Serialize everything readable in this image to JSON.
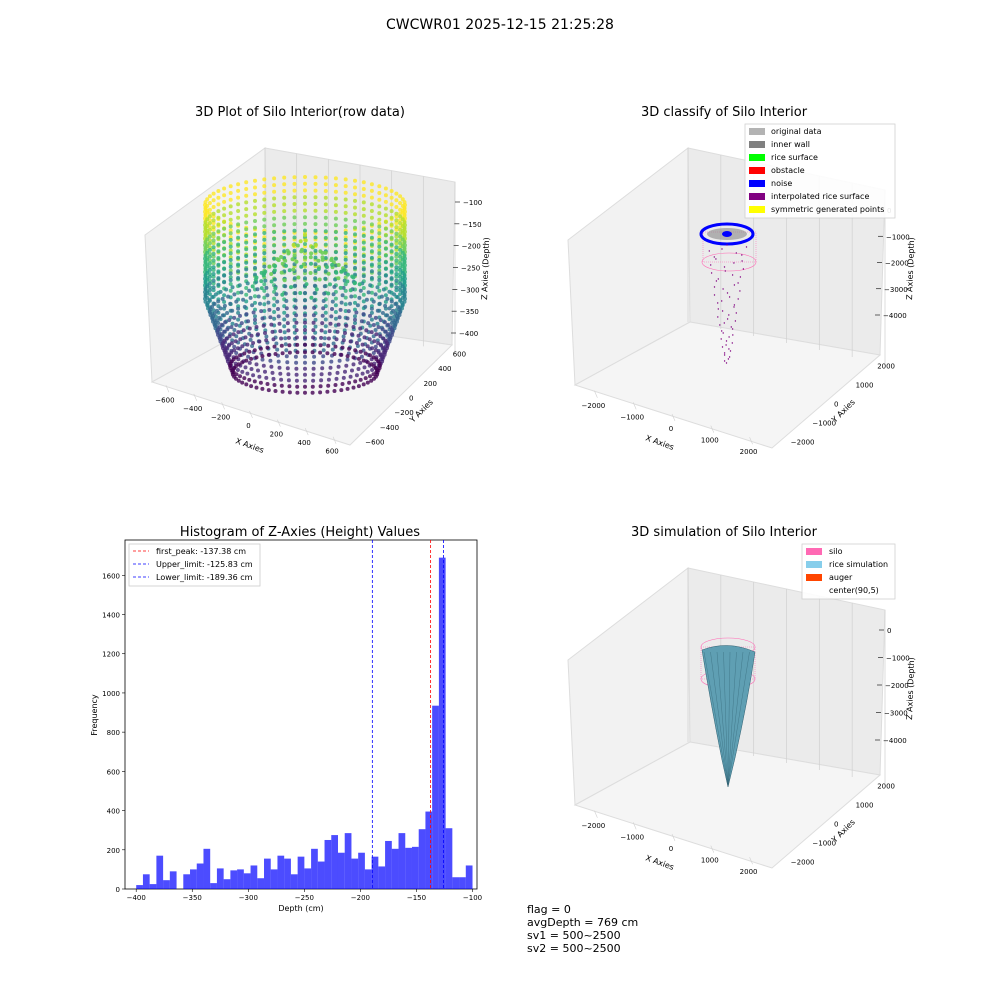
{
  "figure": {
    "suptitle": "CWCWR01 2025-12-15 21:25:28",
    "footer": {
      "flag": "flag = 0",
      "avg_depth": "avgDepth = 769 cm",
      "sv1": "sv1 = 500~2500",
      "sv2": "sv2 = 500~2500"
    }
  },
  "chart_data": [
    {
      "type": "scatter",
      "title": "3D Plot of Silo Interior(row data)",
      "xlabel": "X Axies",
      "ylabel": "Y Axies",
      "zlabel": "Z Axies (Depth)",
      "x_ticks": [
        -600,
        -400,
        -200,
        0,
        200,
        400,
        600
      ],
      "y_ticks": [
        -600,
        -400,
        -200,
        0,
        200,
        400,
        600
      ],
      "z_ticks": [
        -100,
        -150,
        -200,
        -250,
        -300,
        -350,
        -400
      ],
      "colormap": "viridis",
      "grid": true
    },
    {
      "type": "scatter",
      "title": "3D classify of Silo Interior",
      "xlabel": "X Axies",
      "ylabel": "Y Axies",
      "zlabel": "Z Axies (Depth)",
      "x_ticks": [
        -2000,
        -1000,
        0,
        1000,
        2000
      ],
      "y_ticks": [
        -2000,
        -1000,
        0,
        1000,
        2000
      ],
      "z_ticks": [
        0,
        -1000,
        -2000,
        -3000,
        -4000
      ],
      "legend": [
        {
          "label": "original data",
          "color": "#b3b3b3"
        },
        {
          "label": "inner wall",
          "color": "#808080"
        },
        {
          "label": "rice surface",
          "color": "#00ff00"
        },
        {
          "label": "obstacle",
          "color": "#ff0000"
        },
        {
          "label": "noise",
          "color": "#0000ff"
        },
        {
          "label": "interpolated rice surface",
          "color": "#800080"
        },
        {
          "label": "symmetric generated points",
          "color": "#ffff00"
        }
      ],
      "legend_position": "top-right",
      "grid": true
    },
    {
      "type": "bar",
      "title": "Histogram of Z-Axies (Height) Values",
      "xlabel": "Depth (cm)",
      "ylabel": "Frequency",
      "xlim": [
        -410,
        -96
      ],
      "ylim": [
        0,
        1780
      ],
      "x_ticks": [
        -400,
        -350,
        -300,
        -250,
        -200,
        -150,
        -100
      ],
      "y_ticks": [
        0,
        200,
        400,
        600,
        800,
        1000,
        1200,
        1400,
        1600
      ],
      "bin_start": -400,
      "bin_width": 6,
      "values": [
        20,
        75,
        25,
        170,
        45,
        90,
        0,
        75,
        100,
        130,
        205,
        30,
        105,
        50,
        95,
        100,
        80,
        120,
        55,
        155,
        100,
        170,
        155,
        75,
        165,
        105,
        205,
        140,
        250,
        275,
        185,
        285,
        155,
        185,
        100,
        165,
        115,
        245,
        205,
        285,
        210,
        215,
        305,
        395,
        935,
        1690,
        310,
        60,
        60,
        120
      ],
      "bar_color": "#0000ff",
      "lines": [
        {
          "label": "first_peak: -137.38 cm",
          "x": -137.38,
          "color": "#ff0000"
        },
        {
          "label": "Upper_limit: -125.83 cm",
          "x": -125.83,
          "color": "#0000ff"
        },
        {
          "label": "Lower_limit: -189.36 cm",
          "x": -189.36,
          "color": "#0000ff"
        }
      ],
      "legend_position": "top-left",
      "grid": false
    },
    {
      "type": "surface",
      "title": "3D simulation of Silo Interior",
      "xlabel": "X Axies",
      "ylabel": "Y Axies",
      "zlabel": "Z Axies (Depth)",
      "x_ticks": [
        -2000,
        -1000,
        0,
        1000,
        2000
      ],
      "y_ticks": [
        -2000,
        -1000,
        0,
        1000,
        2000
      ],
      "z_ticks": [
        0,
        -1000,
        -2000,
        -3000,
        -4000
      ],
      "legend": [
        {
          "label": "silo",
          "color": "#ff69b4"
        },
        {
          "label": "rice simulation",
          "color": "#87ceeb"
        },
        {
          "label": "auger",
          "color": "#ff4500"
        },
        {
          "label": "center(90,5)",
          "color": ""
        }
      ],
      "legend_position": "top-right",
      "grid": true
    }
  ]
}
